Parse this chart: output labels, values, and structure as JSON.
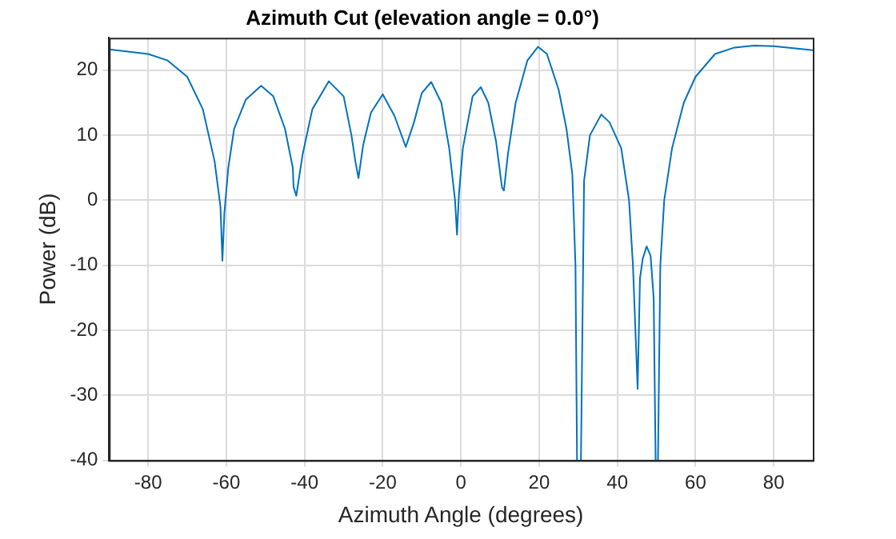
{
  "chart_data": {
    "type": "line",
    "title": "Azimuth Cut (elevation angle = 0.0°)",
    "xlabel": "Azimuth Angle (degrees)",
    "ylabel": "Power (dB)",
    "x": [
      -90,
      -80,
      -75,
      -70,
      -66,
      -63,
      -61.5,
      -61,
      -60.5,
      -59.5,
      -58,
      -55,
      -51.1,
      -48,
      -45,
      -43,
      -42.8,
      -42.1,
      -40.5,
      -38,
      -33.8,
      -30,
      -28,
      -27,
      -26.2,
      -25,
      -23,
      -20,
      -17,
      -14.1,
      -12,
      -10,
      -7.6,
      -5,
      -3,
      -1.5,
      -1,
      -0.5,
      0.5,
      3,
      5.1,
      7,
      9,
      10.5,
      11,
      12,
      14,
      17,
      19.7,
      22,
      25,
      27,
      28.5,
      29.3,
      29.7,
      30.2,
      30.7,
      31.5,
      33,
      35.9,
      38,
      41,
      43,
      44,
      45.2,
      45.8,
      46.5,
      47.5,
      48.5,
      49.3,
      49.8,
      50.1,
      50.4,
      51,
      52,
      54,
      57,
      60,
      65,
      70,
      75,
      80,
      85,
      90
    ],
    "series": [
      {
        "color": "#0072bd",
        "values": [
          23.2,
          22.5,
          21.5,
          19,
          14,
          6,
          -1,
          -9.3,
          -2,
          5,
          11,
          15.5,
          17.6,
          16,
          11,
          5,
          2,
          0.7,
          7,
          14,
          18.3,
          16,
          10,
          6,
          3.4,
          8.5,
          13.5,
          16.3,
          13,
          8.2,
          12,
          16.5,
          18.2,
          15,
          8,
          0,
          -5.3,
          1,
          8,
          16,
          17.4,
          15,
          9,
          2,
          1.5,
          7,
          15,
          21.5,
          23.6,
          22.5,
          17,
          11,
          4,
          -10,
          -40,
          null,
          -40,
          3,
          10,
          13.2,
          12,
          8,
          0,
          -10,
          -29,
          -12,
          -9,
          -7.1,
          -8.5,
          -15,
          -40,
          null,
          -40,
          -10,
          0,
          8,
          15,
          19,
          22.5,
          23.5,
          23.8,
          23.7,
          23.4,
          23.1
        ]
      }
    ],
    "xlim": [
      -90,
      90
    ],
    "xticks": [
      -80,
      -60,
      -40,
      -20,
      0,
      20,
      40,
      60,
      80
    ],
    "ylim": [
      -40,
      25
    ],
    "yticks": [
      -40,
      -30,
      -20,
      -10,
      0,
      10,
      20
    ],
    "grid": true,
    "legend": false,
    "marker": "none",
    "line_style": "solid"
  }
}
